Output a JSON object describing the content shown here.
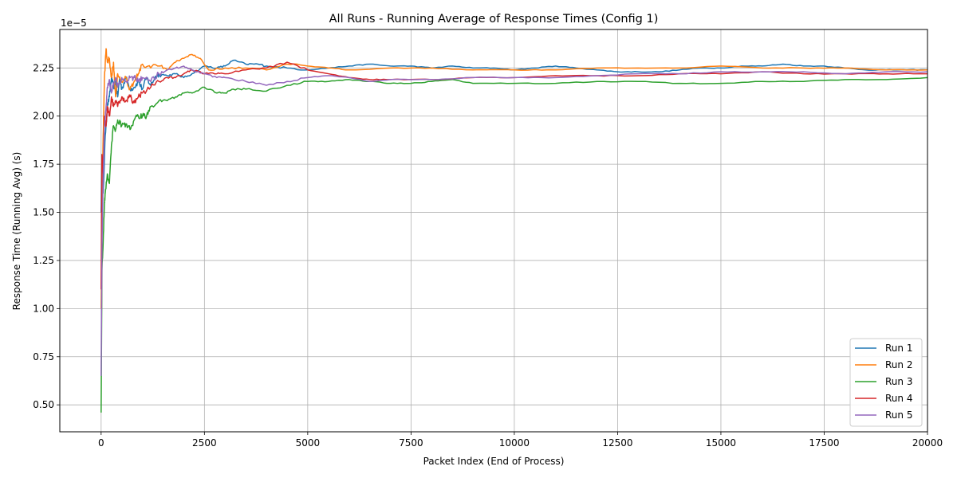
{
  "chart_data": {
    "type": "line",
    "title": "All Runs - Running Average of Response Times (Config 1)",
    "xlabel": "Packet Index (End of Process)",
    "ylabel": "Response Time (Running Avg) (s)",
    "y_offset_label": "1e−5",
    "xlim": [
      -1000,
      20000
    ],
    "ylim": [
      0.36,
      2.45
    ],
    "y_scale_factor": 1e-05,
    "xticks": [
      0,
      2500,
      5000,
      7500,
      10000,
      12500,
      15000,
      17500,
      20000
    ],
    "xtick_labels": [
      "0",
      "2500",
      "5000",
      "7500",
      "10000",
      "12500",
      "15000",
      "17500",
      "20000"
    ],
    "yticks": [
      0.5,
      0.75,
      1.0,
      1.25,
      1.5,
      1.75,
      2.0,
      2.25
    ],
    "ytick_labels": [
      "0.50",
      "0.75",
      "1.00",
      "1.25",
      "1.50",
      "1.75",
      "2.00",
      "2.25"
    ],
    "grid": true,
    "legend_position": "bottom-right",
    "series": [
      {
        "name": "Run 1",
        "color": "#1f77b4",
        "x": [
          0,
          20,
          50,
          100,
          150,
          200,
          250,
          300,
          350,
          400,
          450,
          500,
          600,
          700,
          800,
          900,
          1000,
          1100,
          1200,
          1300,
          1400,
          1600,
          1800,
          2000,
          2200,
          2500,
          2800,
          3000,
          3200,
          3500,
          3800,
          4000,
          4500,
          5000,
          5500,
          6000,
          6500,
          7000,
          7500,
          8000,
          8500,
          9000,
          9500,
          10000,
          10500,
          11000,
          11500,
          12000,
          12500,
          13000,
          13500,
          14000,
          14500,
          15000,
          15500,
          16000,
          16500,
          17000,
          17500,
          18000,
          18500,
          19000,
          19500,
          20000
        ],
        "y": [
          1.5,
          1.8,
          1.6,
          1.9,
          2.05,
          2.1,
          2.2,
          2.15,
          2.18,
          2.1,
          2.2,
          2.14,
          2.2,
          2.14,
          2.15,
          2.18,
          2.14,
          2.2,
          2.16,
          2.2,
          2.22,
          2.21,
          2.22,
          2.2,
          2.22,
          2.26,
          2.25,
          2.26,
          2.29,
          2.27,
          2.27,
          2.26,
          2.25,
          2.24,
          2.25,
          2.26,
          2.27,
          2.26,
          2.26,
          2.25,
          2.26,
          2.25,
          2.25,
          2.24,
          2.25,
          2.26,
          2.25,
          2.24,
          2.23,
          2.23,
          2.23,
          2.24,
          2.25,
          2.25,
          2.26,
          2.26,
          2.27,
          2.26,
          2.26,
          2.25,
          2.24,
          2.24,
          2.24,
          2.24
        ]
      },
      {
        "name": "Run 2",
        "color": "#ff7f0e",
        "x": [
          0,
          20,
          50,
          80,
          120,
          150,
          200,
          250,
          300,
          350,
          400,
          500,
          600,
          700,
          800,
          900,
          1000,
          1200,
          1400,
          1600,
          1800,
          2000,
          2200,
          2400,
          2600,
          3000,
          3500,
          4000,
          4500,
          5000,
          5500,
          6000,
          7000,
          8000,
          9000,
          10000,
          11000,
          12000,
          13000,
          14000,
          15000,
          16000,
          17000,
          18000,
          19000,
          20000
        ],
        "y": [
          1.0,
          1.5,
          1.9,
          2.2,
          2.35,
          2.28,
          2.3,
          2.2,
          2.28,
          2.1,
          2.22,
          2.18,
          2.2,
          2.14,
          2.18,
          2.22,
          2.27,
          2.25,
          2.26,
          2.24,
          2.28,
          2.3,
          2.32,
          2.3,
          2.24,
          2.25,
          2.25,
          2.24,
          2.27,
          2.26,
          2.25,
          2.24,
          2.25,
          2.25,
          2.24,
          2.24,
          2.24,
          2.25,
          2.25,
          2.25,
          2.26,
          2.25,
          2.25,
          2.25,
          2.24,
          2.24
        ]
      },
      {
        "name": "Run 3",
        "color": "#2ca02c",
        "x": [
          0,
          20,
          50,
          80,
          100,
          150,
          200,
          250,
          300,
          350,
          400,
          500,
          600,
          700,
          800,
          900,
          1000,
          1100,
          1200,
          1400,
          1600,
          1800,
          2000,
          2200,
          2500,
          2800,
          3000,
          3200,
          3500,
          4000,
          4500,
          5000,
          5500,
          6000,
          6500,
          7000,
          7500,
          8000,
          8500,
          9000,
          10000,
          11000,
          12000,
          13000,
          14000,
          15000,
          16000,
          17000,
          18000,
          19000,
          20000
        ],
        "y": [
          0.46,
          1.2,
          1.35,
          1.55,
          1.6,
          1.7,
          1.65,
          1.85,
          1.95,
          1.93,
          1.98,
          1.95,
          1.96,
          1.93,
          1.98,
          2.0,
          2.0,
          2.0,
          2.05,
          2.08,
          2.08,
          2.1,
          2.12,
          2.12,
          2.15,
          2.12,
          2.12,
          2.14,
          2.14,
          2.13,
          2.16,
          2.18,
          2.18,
          2.19,
          2.18,
          2.17,
          2.17,
          2.18,
          2.19,
          2.17,
          2.17,
          2.17,
          2.18,
          2.18,
          2.17,
          2.17,
          2.18,
          2.18,
          2.19,
          2.19,
          2.2
        ]
      },
      {
        "name": "Run 4",
        "color": "#d62728",
        "x": [
          0,
          20,
          50,
          80,
          120,
          150,
          200,
          250,
          300,
          350,
          400,
          500,
          600,
          700,
          800,
          900,
          1000,
          1200,
          1400,
          1600,
          1800,
          2000,
          2200,
          2500,
          2800,
          3000,
          3500,
          4000,
          4500,
          5000,
          5500,
          6000,
          6500,
          7000,
          8000,
          9000,
          10000,
          11000,
          12000,
          13000,
          14000,
          15000,
          16000,
          17000,
          18000,
          19000,
          20000
        ],
        "y": [
          1.1,
          1.8,
          1.7,
          2.0,
          1.95,
          2.05,
          2.0,
          2.1,
          2.05,
          2.08,
          2.05,
          2.1,
          2.08,
          2.1,
          2.07,
          2.1,
          2.12,
          2.15,
          2.18,
          2.2,
          2.2,
          2.22,
          2.24,
          2.22,
          2.22,
          2.22,
          2.24,
          2.25,
          2.28,
          2.24,
          2.22,
          2.2,
          2.19,
          2.19,
          2.19,
          2.2,
          2.2,
          2.21,
          2.21,
          2.21,
          2.22,
          2.22,
          2.23,
          2.22,
          2.22,
          2.22,
          2.22
        ]
      },
      {
        "name": "Run 5",
        "color": "#9467bd",
        "x": [
          0,
          20,
          50,
          80,
          120,
          150,
          200,
          250,
          300,
          350,
          400,
          500,
          600,
          700,
          800,
          900,
          1000,
          1200,
          1400,
          1600,
          1800,
          2000,
          2200,
          2500,
          2800,
          3000,
          3500,
          4000,
          4500,
          5000,
          5500,
          6000,
          6500,
          7000,
          8000,
          9000,
          10000,
          11000,
          12000,
          13000,
          14000,
          15000,
          16000,
          17000,
          18000,
          19000,
          20000
        ],
        "y": [
          0.65,
          1.3,
          1.7,
          1.95,
          2.05,
          2.15,
          2.19,
          2.12,
          2.17,
          2.2,
          2.15,
          2.2,
          2.18,
          2.2,
          2.2,
          2.18,
          2.2,
          2.18,
          2.22,
          2.24,
          2.25,
          2.26,
          2.24,
          2.22,
          2.2,
          2.2,
          2.18,
          2.16,
          2.18,
          2.2,
          2.21,
          2.2,
          2.18,
          2.19,
          2.19,
          2.2,
          2.2,
          2.2,
          2.21,
          2.22,
          2.22,
          2.23,
          2.23,
          2.23,
          2.22,
          2.23,
          2.23
        ]
      }
    ]
  }
}
